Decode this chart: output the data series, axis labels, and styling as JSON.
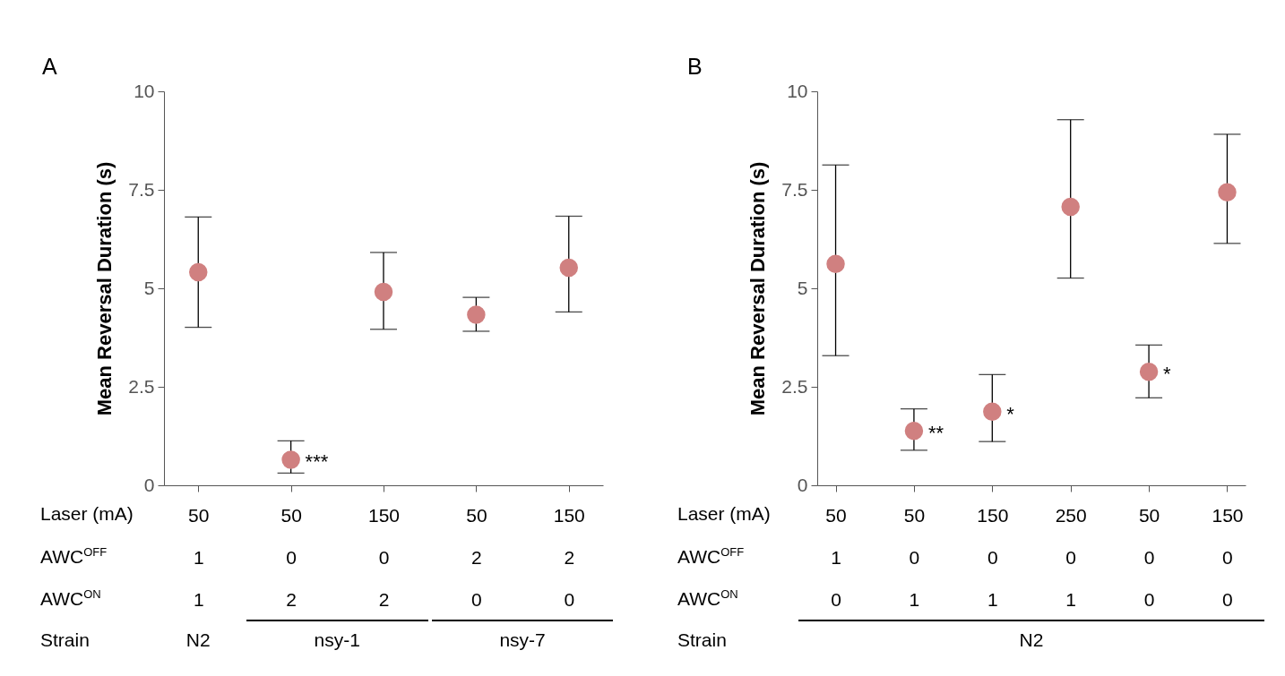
{
  "chart_data": [
    {
      "type": "scatter",
      "title": "A",
      "ylabel": "Mean Reversal Duration (s)",
      "marker": "circle",
      "grid": false,
      "categories": [
        "50\n1\n1",
        "50\n0\n2",
        "150\n0\n2",
        "50\n2\n0",
        "150\n2\n0"
      ],
      "series": [
        {
          "color": "#d08080",
          "values": [
            5.41,
            0.65,
            4.91,
            4.33,
            5.52
          ],
          "errors": [
            [
              4.01,
              6.81
            ],
            [
              0.31,
              1.13
            ],
            [
              3.96,
              5.91
            ],
            [
              3.91,
              4.77
            ],
            [
              4.4,
              6.83
            ]
          ]
        }
      ],
      "ylim": [
        0,
        10
      ],
      "yticks": [
        0,
        2.5,
        5,
        7.5,
        10
      ],
      "annotations": [
        "Laser (mA)",
        "AWC$^{OFF}$",
        "AWC$^{ON}$",
        "Strain",
        "N2",
        "nsy-1",
        "nsy-7",
        {
          "text": "***",
          "x": "50\n0\n2",
          "y": 0.65
        }
      ]
    },
    {
      "type": "scatter",
      "title": "B",
      "ylabel": "Mean Reversal Duration (s)",
      "marker": "circle",
      "grid": false,
      "categories": [
        "50\n1\n0",
        "50\n0\n1",
        "150\n0\n1",
        "250\n0\n1",
        "50\n0\n0",
        "150\n0\n0"
      ],
      "series": [
        {
          "color": "#d08080",
          "values": [
            5.62,
            1.38,
            1.87,
            7.07,
            2.88,
            7.44
          ],
          "errors": [
            [
              3.29,
              8.13
            ],
            [
              0.89,
              1.94
            ],
            [
              1.11,
              2.81
            ],
            [
              5.26,
              9.28
            ],
            [
              2.22,
              3.56
            ],
            [
              6.14,
              8.91
            ]
          ]
        }
      ],
      "ylim": [
        0,
        10
      ],
      "yticks": [
        0,
        2.5,
        5,
        7.5,
        10
      ],
      "annotations": [
        "Laser (mA)",
        "AWC$^{OFF}$",
        "AWC$^{ON}$",
        "Strain",
        "N2",
        {
          "text": "**",
          "x": "50\n0\n1",
          "y": 1.38
        },
        {
          "text": "*",
          "x": "150\n0\n1",
          "y": 1.87
        },
        {
          "text": "*",
          "x": "50\n0\n0",
          "y": 2.88
        }
      ]
    }
  ]
}
